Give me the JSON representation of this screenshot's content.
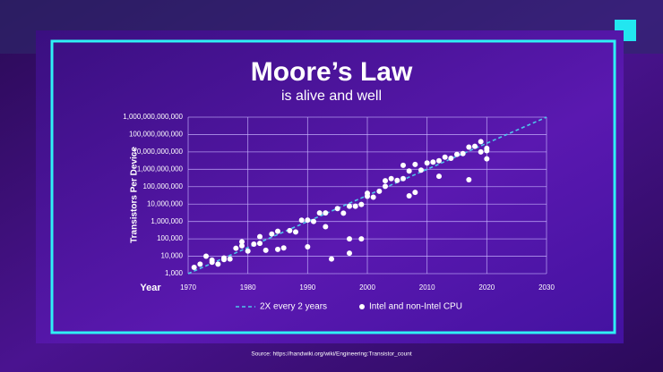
{
  "chart_data": {
    "type": "scatter",
    "title": "Moore’s Law",
    "subtitle": "is alive and well",
    "y_label": "Transistors Per Device",
    "x_label": "Year",
    "source": "Source: https://handwiki.org/wiki/Engineering:Transistor_count",
    "log_scale_y": true,
    "grid": true,
    "xlim": [
      1970,
      2030
    ],
    "xticks": [
      1970,
      1980,
      1990,
      2000,
      2010,
      2020,
      2030
    ],
    "ylim": [
      1000,
      1000000000000
    ],
    "yticks": [
      {
        "value": 1000,
        "label": "1,000"
      },
      {
        "value": 10000,
        "label": "10,000"
      },
      {
        "value": 100000,
        "label": "100,000"
      },
      {
        "value": 1000000,
        "label": "1,000,000"
      },
      {
        "value": 10000000,
        "label": "10,000,000"
      },
      {
        "value": 100000000,
        "label": "100,000,000"
      },
      {
        "value": 1000000000,
        "label": "1,000,000,000"
      },
      {
        "value": 10000000000,
        "label": "10,000,000,000"
      },
      {
        "value": 100000000000,
        "label": "100,000,000,000"
      },
      {
        "value": 1000000000000,
        "label": "1,000,000,000,000"
      }
    ],
    "series": [
      {
        "name": "2X every 2 years",
        "type": "line",
        "color": "#4fc6ea",
        "x": [
          1970,
          2030
        ],
        "values": [
          1000,
          1000000000000
        ]
      },
      {
        "name": "Intel and non-Intel CPU",
        "type": "scatter",
        "color": "#ffffff",
        "x": [
          1971,
          1972,
          1973,
          1974,
          1974,
          1975,
          1976,
          1976,
          1977,
          1978,
          1979,
          1979,
          1980,
          1981,
          1982,
          1982,
          1983,
          1984,
          1985,
          1985,
          1986,
          1987,
          1988,
          1989,
          1990,
          1990,
          1991,
          1992,
          1993,
          1993,
          1994,
          1995,
          1996,
          1997,
          1997,
          1997,
          1998,
          1999,
          1999,
          2000,
          2000,
          2001,
          2002,
          2003,
          2003,
          2004,
          2005,
          2006,
          2006,
          2007,
          2007,
          2008,
          2008,
          2009,
          2010,
          2011,
          2012,
          2012,
          2013,
          2014,
          2015,
          2016,
          2017,
          2017,
          2018,
          2019,
          2019,
          2020,
          2020,
          2020
        ],
        "values": [
          2300,
          3500,
          10000,
          4500,
          6000,
          3500,
          8000,
          6500,
          7000,
          29000,
          68000,
          40000,
          20000,
          50000,
          134000,
          55000,
          22000,
          190000,
          275000,
          25000,
          30000,
          300000,
          250000,
          1180000,
          1200000,
          35000,
          1000000,
          3100000,
          3100000,
          500000,
          7000,
          5500000,
          3000000,
          7500000,
          100000,
          15000,
          7500000,
          9500000,
          100000,
          42000000,
          28000000,
          25000000,
          55000000,
          220000000,
          105000000,
          290000000,
          230000000,
          291000000,
          1700000000,
          800000000,
          30000000,
          1900000000,
          47000000,
          900000000,
          2300000000,
          2600000000,
          3100000000,
          400000000,
          5000000000,
          4300000000,
          7200000000,
          8000000000,
          19000000000,
          250000000,
          21000000000,
          39000000000,
          10000000000,
          16000000000,
          11800000000,
          4000000000
        ]
      }
    ]
  }
}
